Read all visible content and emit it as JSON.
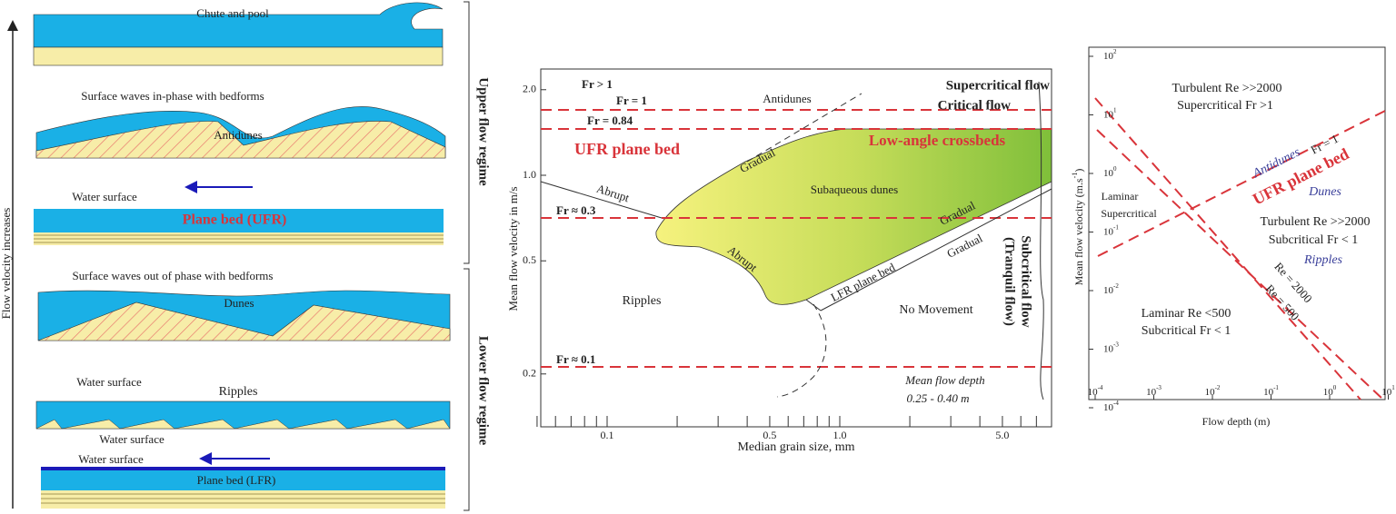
{
  "left": {
    "axis_label": "Flow velocity increases",
    "upper_regime": "Upper flow regime",
    "lower_regime": "Lower flow regime",
    "panels": [
      {
        "caption": "Chute and pool"
      },
      {
        "caption": "Surface waves in-phase with bedforms",
        "label": "Antidunes"
      },
      {
        "caption": "Water surface",
        "label": "Plane bed (UFR)"
      },
      {
        "caption": "Surface waves out of phase with bedforms",
        "label": "Dunes"
      },
      {
        "caption": "Water surface",
        "label": "Ripples"
      },
      {
        "caption": "Water surface"
      },
      {
        "caption": "Water surface",
        "label": "Plane bed (LFR)"
      }
    ]
  },
  "middle": {
    "y_label": "Mean flow velocity in m/s",
    "x_label": "Median grain size, mm",
    "yticks": [
      "0.2",
      "0.5",
      "1.0",
      "2.0"
    ],
    "xticks": [
      "0.1",
      "0.5",
      "1.0",
      "5.0"
    ],
    "annotations": [
      "Fr > 1",
      "Fr = 1",
      "Fr = 0.84",
      "UFR plane bed",
      "Antidunes",
      "Supercritical flow",
      "Critical flow",
      "Low-angle crossbeds",
      "Gradual",
      "Subaqueous dunes",
      "Abrupt",
      "Fr ≈ 0.3",
      "Gradual",
      "Gradual",
      "Abrupt",
      "LFR plane bed",
      "Ripples",
      "No Movement",
      "Subcritical flow",
      "(Tranquil flow)",
      "Fr ≈ 0.1",
      "Mean flow depth",
      "0.25 - 0.40 m"
    ]
  },
  "right": {
    "y_label": "Mean flow velocity (m.s",
    "y_label_exp": "-1",
    "y_label_end": ")",
    "x_label": "Flow depth (m)",
    "yticks": [
      {
        "base": "10",
        "exp": "2"
      },
      {
        "base": "10",
        "exp": "1"
      },
      {
        "base": "10",
        "exp": "0"
      },
      {
        "base": "10",
        "exp": "-1"
      },
      {
        "base": "10",
        "exp": "-2"
      },
      {
        "base": "10",
        "exp": "-3"
      },
      {
        "base": "10",
        "exp": "-4"
      }
    ],
    "xticks": [
      {
        "base": "10",
        "exp": "-4"
      },
      {
        "base": "10",
        "exp": "-3"
      },
      {
        "base": "10",
        "exp": "-2"
      },
      {
        "base": "10",
        "exp": "-1"
      },
      {
        "base": "10",
        "exp": "0"
      },
      {
        "base": "10",
        "exp": "1"
      }
    ],
    "annotations": [
      "Turbulent Re >>2000",
      "Supercritical Fr >1",
      "Antidunes",
      "Fr = 1",
      "UFR plane bed",
      "Laminar",
      "Supercritical",
      "Dunes",
      "Turbulent Re >>2000",
      "Subcritical Fr < 1",
      "Ripples",
      "Re = 2000",
      "Re = 500",
      "Laminar Re <500",
      "Subcritical Fr < 1"
    ]
  }
}
